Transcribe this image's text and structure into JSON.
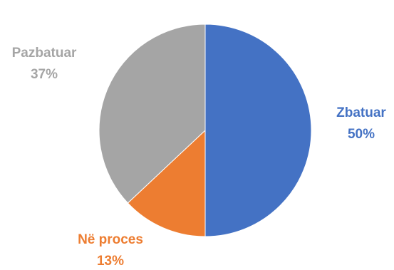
{
  "chart_data": {
    "type": "pie",
    "title": "",
    "legend": "none",
    "slices": [
      {
        "label": "Zbatuar",
        "value": 50,
        "percent_text": "50%",
        "color": "#4472C4"
      },
      {
        "label": "Në proces",
        "value": 13,
        "percent_text": "13%",
        "color": "#ED7D31"
      },
      {
        "label": "Pazbatuar",
        "value": 37,
        "percent_text": "37%",
        "color": "#A5A5A5"
      }
    ]
  }
}
